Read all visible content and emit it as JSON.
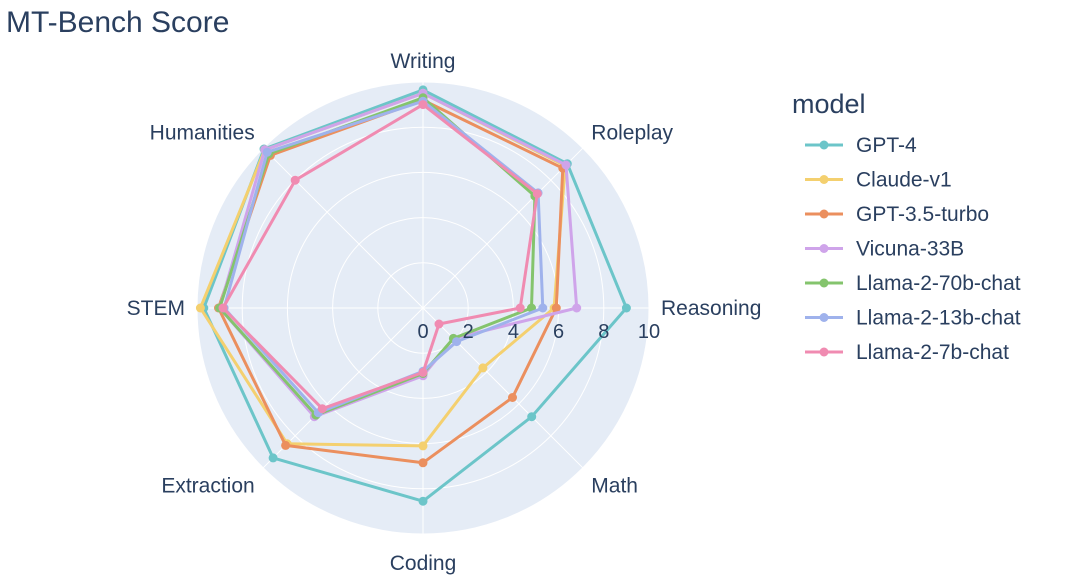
{
  "chart_data": {
    "type": "radar",
    "title": "MT-Bench Score",
    "axes": [
      "Writing",
      "Roleplay",
      "Reasoning",
      "Math",
      "Coding",
      "Extraction",
      "STEM",
      "Humanities"
    ],
    "radial_range": [
      0,
      10
    ],
    "radial_ticks": [
      "0",
      "2",
      "4",
      "6",
      "8",
      "10"
    ],
    "legend_title": "model",
    "legend_position": "right",
    "grid": true,
    "series": [
      {
        "name": "GPT-4",
        "color": "#6cc5c9",
        "values": [
          9.65,
          9.03,
          9.0,
          6.8,
          8.55,
          9.38,
          9.7,
          9.95
        ]
      },
      {
        "name": "Claude-v1",
        "color": "#f4d06f",
        "values": [
          9.5,
          8.9,
          5.8,
          3.75,
          6.1,
          8.5,
          9.85,
          9.9
        ]
      },
      {
        "name": "GPT-3.5-turbo",
        "color": "#eb8f5e",
        "values": [
          9.2,
          8.75,
          5.9,
          5.6,
          6.85,
          8.6,
          9.05,
          9.55
        ]
      },
      {
        "name": "Vicuna-33B",
        "color": "#cfa4ea",
        "values": [
          9.5,
          8.95,
          6.8,
          1.9,
          3.0,
          6.8,
          9.0,
          9.9
        ]
      },
      {
        "name": "Llama-2-70b-chat",
        "color": "#84c46d",
        "values": [
          9.3,
          7.0,
          4.8,
          1.9,
          2.9,
          6.7,
          9.0,
          9.65
        ]
      },
      {
        "name": "Llama-2-13b-chat",
        "color": "#9fb2ec",
        "values": [
          9.15,
          7.2,
          5.3,
          2.1,
          2.8,
          6.55,
          8.8,
          9.75
        ]
      },
      {
        "name": "Llama-2-7b-chat",
        "color": "#f08bb1",
        "values": [
          9.0,
          7.15,
          4.3,
          1.0,
          2.85,
          6.3,
          8.85,
          8.0
        ]
      }
    ]
  }
}
